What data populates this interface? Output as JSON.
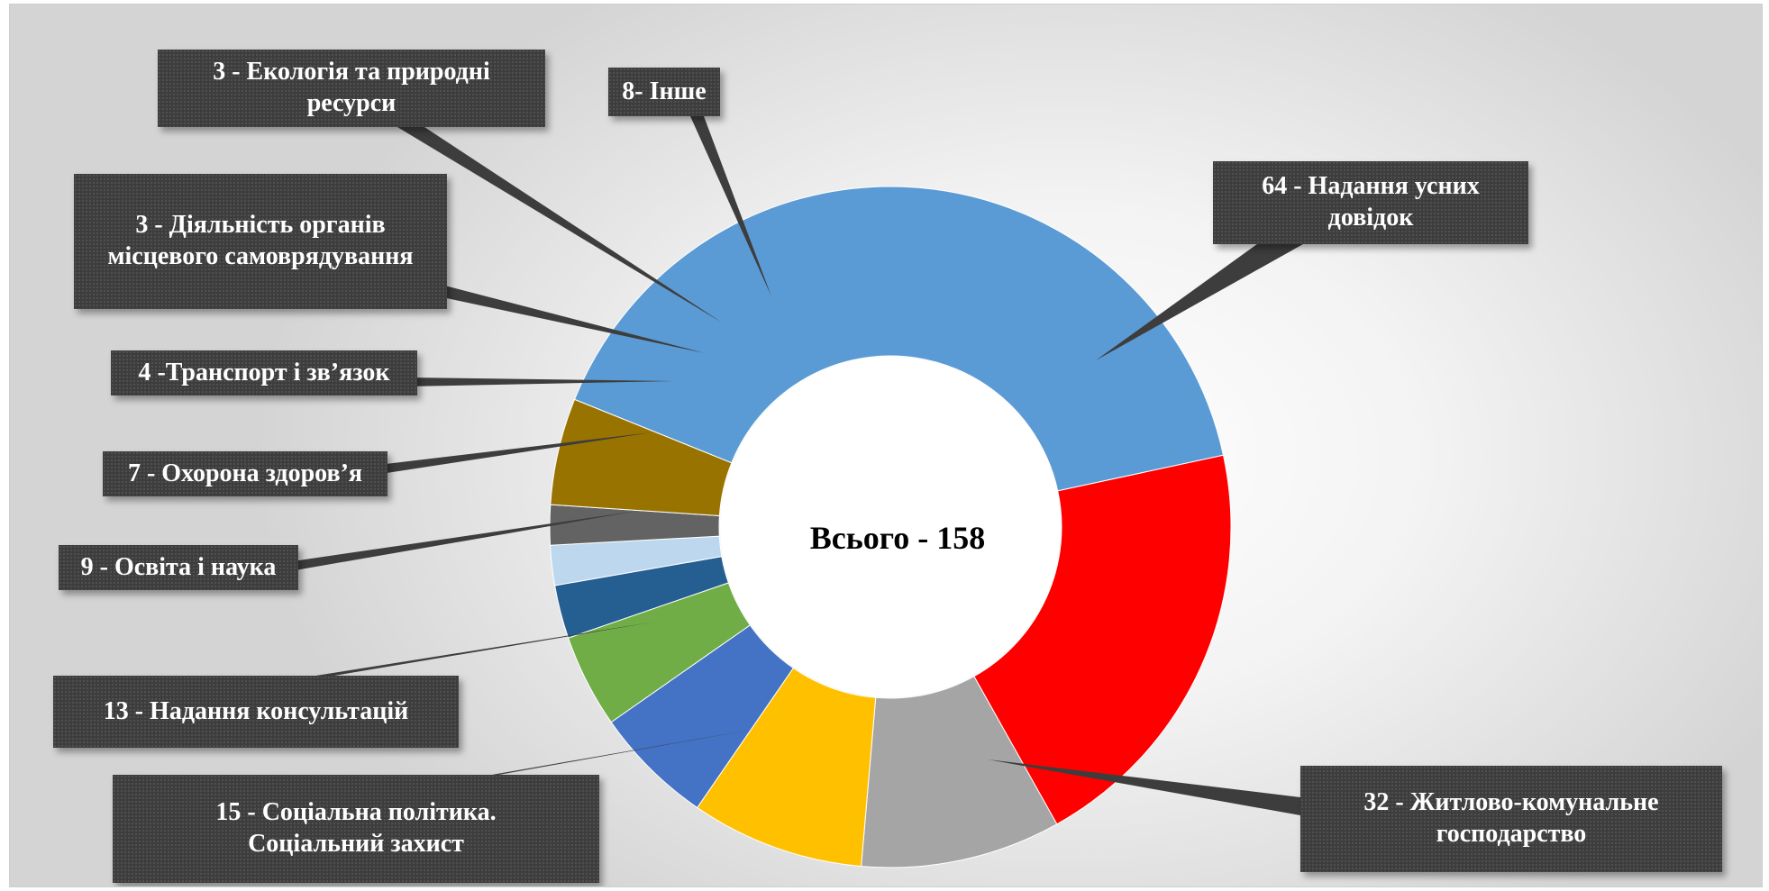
{
  "chart_data": {
    "type": "pie",
    "title": "",
    "center_label": "Всього - 158",
    "total": 158,
    "slices": [
      {
        "label": "64 - Надання усних довідок",
        "value": 64,
        "color": "#5b9bd5"
      },
      {
        "label": "32 - Житлово-комунальне господарство",
        "value": 32,
        "color": "#ff0000"
      },
      {
        "label": "15 - Соціальна політика. Соціальний захист",
        "value": 15,
        "color": "#a5a5a5"
      },
      {
        "label": "13 - Надання консультацій",
        "value": 13,
        "color": "#ffc000"
      },
      {
        "label": "9 - Освіта і наука",
        "value": 9,
        "color": "#4472c4"
      },
      {
        "label": "7 - Охорона здоров’я",
        "value": 7,
        "color": "#70ad47"
      },
      {
        "label": "4 -Транспорт і зв’язок",
        "value": 4,
        "color": "#255e91"
      },
      {
        "label": "3 - Діяльність органів місцевого самоврядування",
        "value": 3,
        "color": "#bdd7ee"
      },
      {
        "label": "3 - Екологія та природні ресурси",
        "value": 3,
        "color": "#636363"
      },
      {
        "label": "8- Інше",
        "value": 8,
        "color": "#997300"
      }
    ]
  }
}
